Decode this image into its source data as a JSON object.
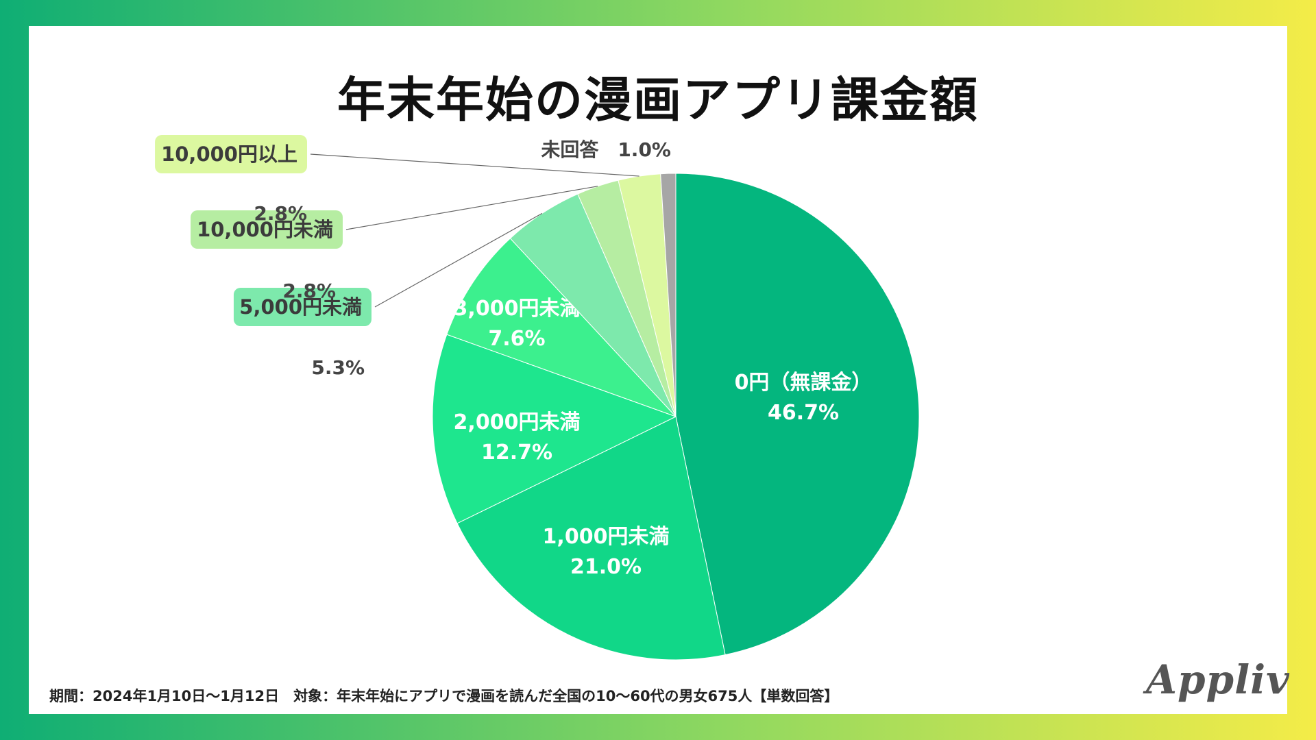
{
  "page": {
    "footnote": "期間：2024年1月10日〜1月12日　対象：年末年始にアプリで漫画を読んだ全国の10〜60代の男女675人【単数回答】",
    "logo": "Appliv"
  },
  "chart_data": {
    "type": "pie",
    "title": "年末年始の漫画アプリ課金額",
    "unit": "%",
    "slices": [
      {
        "label": "0円（無課金）",
        "value": 46.7,
        "value_label": "46.7%",
        "color": "#04b67e",
        "label_style": "inside"
      },
      {
        "label": "1,000円未満",
        "value": 21.0,
        "value_label": "21.0%",
        "color": "#11d788",
        "label_style": "inside"
      },
      {
        "label": "2,000円未満",
        "value": 12.7,
        "value_label": "12.7%",
        "color": "#1ee68e",
        "label_style": "inside"
      },
      {
        "label": "3,000円未満",
        "value": 7.6,
        "value_label": "7.6%",
        "color": "#3cf08e",
        "label_style": "inside"
      },
      {
        "label": "5,000円未満",
        "value": 5.3,
        "value_label": "5.3%",
        "color": "#7de9ac",
        "label_style": "callout",
        "pill_color": "#7de9ac"
      },
      {
        "label": "10,000円未満",
        "value": 2.8,
        "value_label": "2.8%",
        "color": "#b6eda2",
        "label_style": "callout",
        "pill_color": "#b6eda2"
      },
      {
        "label": "10,000円以上",
        "value": 2.8,
        "value_label": "2.8%",
        "color": "#dcf8a0",
        "label_style": "callout",
        "pill_color": "#dcf8a0"
      },
      {
        "label": "未回答",
        "value": 1.0,
        "value_label": "1.0%",
        "color": "#a6a6a6",
        "label_style": "top"
      }
    ]
  }
}
